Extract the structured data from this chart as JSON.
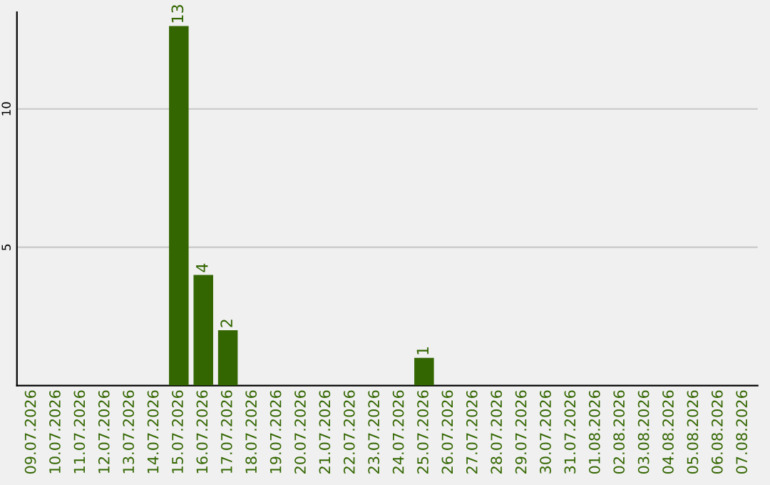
{
  "chart_data": {
    "type": "bar",
    "categories": [
      "09.07.2026",
      "10.07.2026",
      "11.07.2026",
      "12.07.2026",
      "13.07.2026",
      "14.07.2026",
      "15.07.2026",
      "16.07.2026",
      "17.07.2026",
      "18.07.2026",
      "19.07.2026",
      "20.07.2026",
      "21.07.2026",
      "22.07.2026",
      "23.07.2026",
      "24.07.2026",
      "25.07.2026",
      "26.07.2026",
      "27.07.2026",
      "28.07.2026",
      "29.07.2026",
      "30.07.2026",
      "31.07.2026",
      "01.08.2026",
      "02.08.2026",
      "03.08.2026",
      "04.08.2026",
      "05.08.2026",
      "06.08.2026",
      "07.08.2026"
    ],
    "values": [
      0,
      0,
      0,
      0,
      0,
      0,
      13,
      4,
      2,
      0,
      0,
      0,
      0,
      0,
      0,
      0,
      1,
      0,
      0,
      0,
      0,
      0,
      0,
      0,
      0,
      0,
      0,
      0,
      0,
      0
    ],
    "value_labels": [
      null,
      null,
      null,
      null,
      null,
      null,
      "13",
      "4",
      "2",
      null,
      null,
      null,
      null,
      null,
      null,
      null,
      "1",
      null,
      null,
      null,
      null,
      null,
      null,
      null,
      null,
      null,
      null,
      null,
      null,
      null
    ],
    "color": "#336600",
    "ylim": [
      0,
      13.5
    ],
    "yticks": [
      5,
      10
    ],
    "grid": "y"
  }
}
